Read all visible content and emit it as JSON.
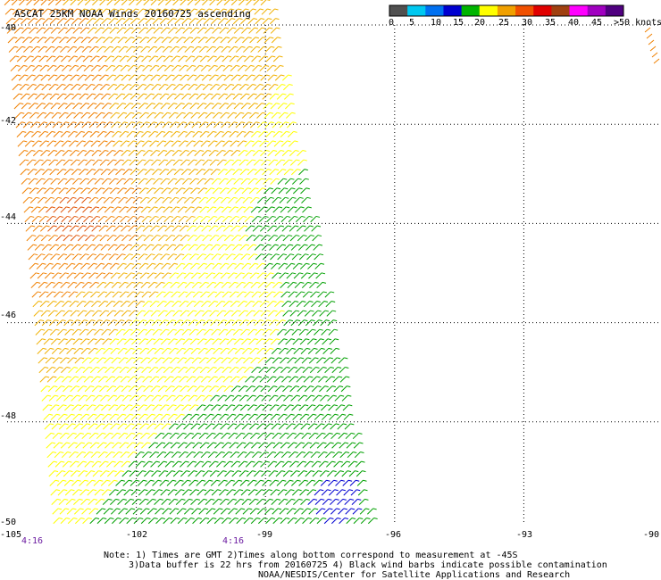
{
  "title": "ASCAT 25KM NOAA Winds 20160725 ascending",
  "chart_data": {
    "type": "scatter",
    "title": "ASCAT 25KM NOAA Winds 20160725 ascending",
    "xlabel": "",
    "ylabel": "",
    "x_ticks": [
      "-105",
      "-102",
      "-99",
      "-96",
      "-93",
      "-90"
    ],
    "y_ticks": [
      "-40",
      "-42",
      "-44",
      "-46",
      "-48",
      "-50"
    ],
    "xlim": [
      -105,
      -90
    ],
    "ylim": [
      -50,
      -39.5
    ],
    "grid": true,
    "time_labels": [
      {
        "lon": -105,
        "text": "4:16"
      },
      {
        "lon": -99,
        "text": "4:16"
      }
    ],
    "color_scale": {
      "unit_label": ">50 knots",
      "tick_labels": [
        "0",
        "5",
        "10",
        "15",
        "20",
        "25",
        "30",
        "35",
        "40",
        "45",
        ">50 knots"
      ],
      "colors": [
        "#505050",
        "#00c8f0",
        "#0070f0",
        "#0000d0",
        "#00b400",
        "#ffff00",
        "#f0a000",
        "#f05000",
        "#e00000",
        "#a04010",
        "#ff00ff",
        "#a000c0",
        "#500080"
      ]
    },
    "series": [
      {
        "values": [
          {
            "lon": -104.5,
            "lat": -41.5,
            "knots": 33
          },
          {
            "lon": -103.5,
            "lat": -44,
            "knots": 37
          },
          {
            "lon": -101,
            "lat": -42,
            "knots": 28
          },
          {
            "lon": -100.2,
            "lat": -46.5,
            "knots": 22
          },
          {
            "lon": -98.5,
            "lat": -44,
            "knots": 17
          },
          {
            "lon": -98,
            "lat": -48.5,
            "knots": 14
          },
          {
            "lon": -97.5,
            "lat": -49.5,
            "knots": 8
          }
        ]
      }
    ]
  },
  "notes": {
    "line1": "Note: 1) Times are GMT 2)Times along bottom correspond to measurement at -45S",
    "line2": "3)Data buffer is 22 hrs from 20160725 4) Black wind barbs indicate possible contamination",
    "line3": "NOAA/NESDIS/Center for Satellite Applications and Research"
  }
}
